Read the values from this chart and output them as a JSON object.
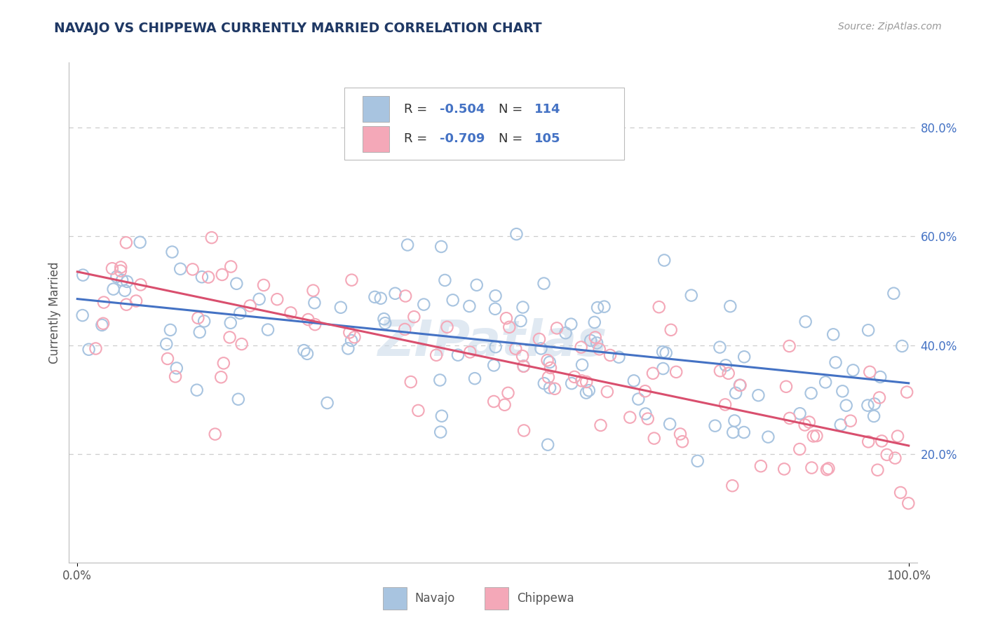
{
  "title": "NAVAJO VS CHIPPEWA CURRENTLY MARRIED CORRELATION CHART",
  "source": "Source: ZipAtlas.com",
  "ylabel": "Currently Married",
  "y_tick_labels": [
    "20.0%",
    "40.0%",
    "60.0%",
    "80.0%"
  ],
  "y_tick_values": [
    0.2,
    0.4,
    0.6,
    0.8
  ],
  "x_tick_labels": [
    "0.0%",
    "100.0%"
  ],
  "x_tick_values": [
    0.0,
    1.0
  ],
  "navajo_R": -0.504,
  "navajo_N": 114,
  "chippewa_R": -0.709,
  "chippewa_N": 105,
  "navajo_color": "#a8c4e0",
  "chippewa_color": "#f4a8b8",
  "navajo_line_color": "#4472c4",
  "chippewa_line_color": "#d94f6e",
  "background_color": "#ffffff",
  "grid_color": "#cccccc",
  "title_color": "#1f3864",
  "legend_text_color": "#4472c4",
  "watermark_color": "#c8d8e8",
  "navajo_intercept": 0.485,
  "navajo_slope": -0.155,
  "chippewa_intercept": 0.535,
  "chippewa_slope": -0.32
}
